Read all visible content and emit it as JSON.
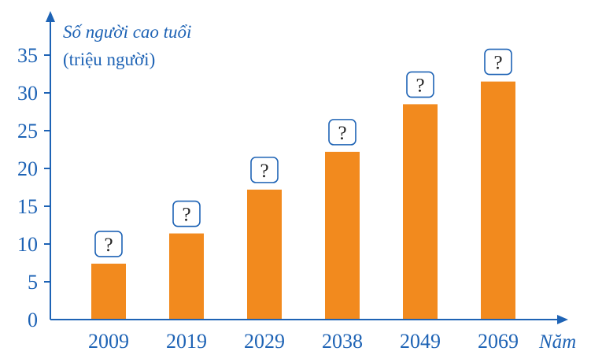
{
  "colors": {
    "axis": "#1e63b5",
    "bar": "#f28a1e",
    "box_stroke": "#1e63b5",
    "question_text": "#222222"
  },
  "chart_data": {
    "type": "bar",
    "categories": [
      "2009",
      "2019",
      "2029",
      "2038",
      "2049",
      "2069"
    ],
    "values": [
      7.4,
      11.4,
      17.2,
      22.2,
      28.5,
      31.5
    ],
    "value_labels": [
      "?",
      "?",
      "?",
      "?",
      "?",
      "?"
    ],
    "ylabel": "Số người cao tuổi",
    "yunit": "(triệu người)",
    "xlabel": "Năm",
    "ylim": [
      0,
      35
    ],
    "yticks": [
      0,
      5,
      10,
      15,
      20,
      25,
      30,
      35
    ],
    "grid": false
  }
}
